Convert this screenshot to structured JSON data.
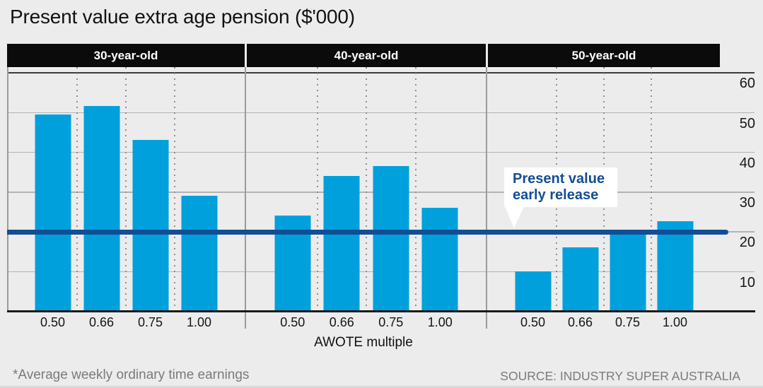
{
  "title": "Present value extra age pension ($'000)",
  "footnote": "*Average weekly ordinary time earnings",
  "source": "SOURCE: INDUSTRY SUPER AUSTRALIA",
  "callout": {
    "line1": "Present value",
    "line2": "early release"
  },
  "axis_title": "AWOTE multiple",
  "colors": {
    "background": "#ececec",
    "bar": "#00a0dc",
    "reference_line": "#134e94",
    "header_bg": "#0b0b0b",
    "header_text": "#ffffff",
    "gridline": "#b3b3b3",
    "top_gridline": "#3c3c3c",
    "axis": "#1a1a1a",
    "muted_text": "#7a7a7a",
    "callout_bg": "#ffffff",
    "callout_text": "#134e94"
  },
  "chart_data": {
    "type": "bar",
    "title": "Present value extra age pension ($'000)",
    "xlabel": "AWOTE multiple",
    "ylabel": "",
    "ylim": [
      0,
      61.5
    ],
    "yticks": [
      60,
      50,
      40,
      30,
      20,
      10
    ],
    "grid": "horizontal solid gridlines; dotted vertical separators between bars; gridlines extend to right-side tick labels",
    "legend_position": "none",
    "categories": [
      "0.50",
      "0.66",
      "0.75",
      "1.00"
    ],
    "panels": [
      {
        "label": "30-year-old",
        "values": [
          49.5,
          51.5,
          43,
          29
        ]
      },
      {
        "label": "40-year-old",
        "values": [
          24,
          34,
          36.5,
          26
        ]
      },
      {
        "label": "50-year-old",
        "values": [
          10,
          16,
          20,
          22.5
        ]
      }
    ],
    "reference_line": {
      "value": 20,
      "label": "Present value early release"
    }
  }
}
